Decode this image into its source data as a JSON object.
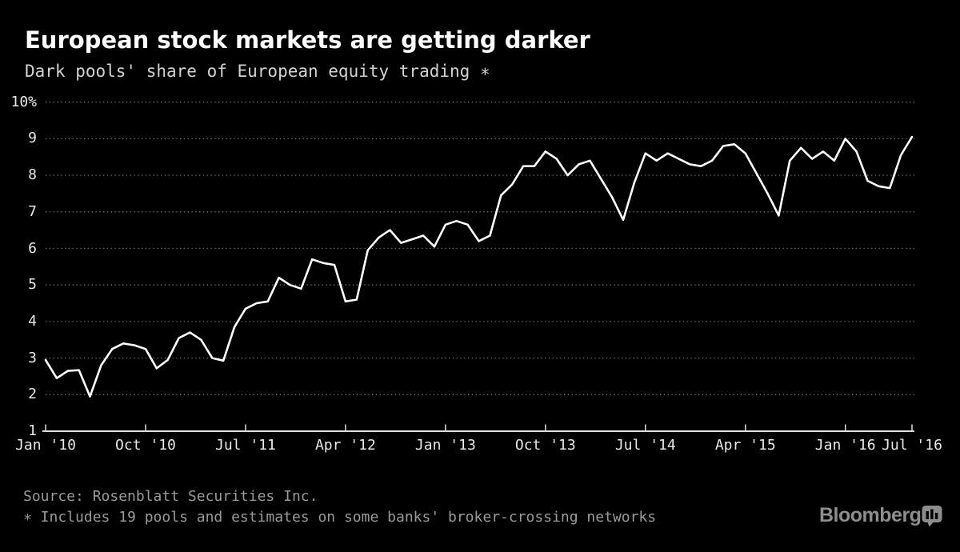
{
  "header": {
    "title": "European stock markets are getting darker",
    "subtitle": "Dark pools' share of European equity trading ∗"
  },
  "footer": {
    "source": "Source: Rosenblatt Securities Inc.",
    "note": "∗ Includes 19 pools and estimates on some banks' broker-crossing networks",
    "brand": "Bloomberg"
  },
  "colors": {
    "background": "#000000",
    "line": "#ffffff",
    "grid": "#6e6e6e",
    "axis": "#e0e0e0",
    "label": "#e8e8e8",
    "muted": "#9a9a9a",
    "brand": "#8d8d8d"
  },
  "chart_data": {
    "type": "line",
    "title": "European stock markets are getting darker",
    "subtitle": "Dark pools' share of European equity trading ∗",
    "unit": "%",
    "start_month": "2010-01",
    "interval": "monthly",
    "ylim": [
      1,
      10
    ],
    "grid": "dotted-horizontal",
    "legend": "none",
    "y_ticks": [
      {
        "label": "1",
        "value": 1
      },
      {
        "label": "2",
        "value": 2
      },
      {
        "label": "3",
        "value": 3
      },
      {
        "label": "4",
        "value": 4
      },
      {
        "label": "5",
        "value": 5
      },
      {
        "label": "6",
        "value": 6
      },
      {
        "label": "7",
        "value": 7
      },
      {
        "label": "8",
        "value": 8
      },
      {
        "label": "9",
        "value": 9
      },
      {
        "label": "10%",
        "value": 10
      }
    ],
    "x_ticks": [
      {
        "label": "Jan '10",
        "month_index": 0
      },
      {
        "label": "Oct '10",
        "month_index": 9
      },
      {
        "label": "Jul '11",
        "month_index": 18
      },
      {
        "label": "Apr '12",
        "month_index": 27
      },
      {
        "label": "Jan '13",
        "month_index": 36
      },
      {
        "label": "Oct '13",
        "month_index": 45
      },
      {
        "label": "Jul '14",
        "month_index": 54
      },
      {
        "label": "Apr '15",
        "month_index": 63
      },
      {
        "label": "Jan '16",
        "month_index": 72
      },
      {
        "label": "Jul '16",
        "month_index": 78
      }
    ],
    "series": [
      {
        "name": "Dark pools' share of European equity trading (%)",
        "values": [
          2.95,
          2.45,
          2.65,
          2.67,
          1.95,
          2.8,
          3.25,
          3.4,
          3.35,
          3.25,
          2.72,
          2.95,
          3.55,
          3.7,
          3.5,
          3.0,
          2.93,
          3.85,
          4.35,
          4.5,
          4.55,
          5.2,
          5.0,
          4.9,
          5.7,
          5.6,
          5.55,
          4.55,
          4.6,
          5.95,
          6.3,
          6.5,
          6.15,
          6.25,
          6.35,
          6.05,
          6.65,
          6.75,
          6.65,
          6.2,
          6.35,
          7.45,
          7.75,
          8.25,
          8.25,
          8.65,
          8.45,
          8.0,
          8.3,
          8.4,
          7.9,
          7.4,
          6.78,
          7.8,
          8.6,
          8.4,
          8.6,
          8.45,
          8.3,
          8.25,
          8.4,
          8.8,
          8.85,
          8.6,
          8.05,
          7.5,
          6.9,
          8.4,
          8.75,
          8.45,
          8.65,
          8.4,
          9.0,
          8.65,
          7.85,
          7.7,
          7.65,
          8.55,
          9.05
        ]
      }
    ]
  }
}
